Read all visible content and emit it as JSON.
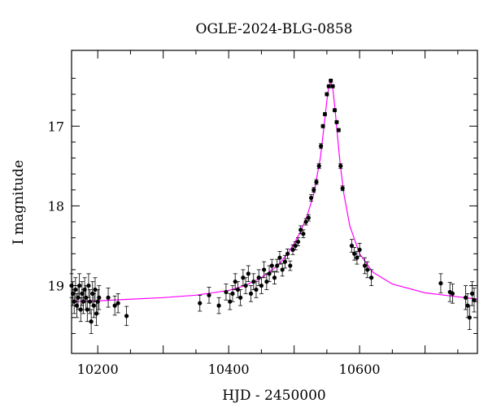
{
  "chart_data": {
    "type": "scatter",
    "title": "OGLE-2024-BLG-0858",
    "xlabel": "HJD - 2450000",
    "ylabel": "I magnitude",
    "xlim": [
      10160,
      10780
    ],
    "ylim": [
      19.85,
      16.05
    ],
    "y_inverted": true,
    "x_ticks": [
      10200,
      10400,
      10600
    ],
    "y_ticks": [
      17,
      18,
      19
    ],
    "grid": false,
    "legend": "none",
    "colors": {
      "points": "#000000",
      "model": "#ff00ff",
      "axes": "#000000"
    },
    "observations": {
      "x": [
        10160,
        10162,
        10164,
        10166,
        10168,
        10170,
        10172,
        10174,
        10176,
        10178,
        10180,
        10182,
        10184,
        10186,
        10188,
        10190,
        10192,
        10194,
        10196,
        10198,
        10200,
        10202,
        10216,
        10226,
        10231,
        10244,
        10356,
        10370,
        10385,
        10396,
        10402,
        10406,
        10410,
        10414,
        10418,
        10422,
        10426,
        10430,
        10434,
        10438,
        10442,
        10446,
        10450,
        10454,
        10458,
        10462,
        10466,
        10470,
        10474,
        10478,
        10482,
        10486,
        10490,
        10494,
        10498,
        10502,
        10506,
        10510,
        10514,
        10518,
        10522,
        10526,
        10530,
        10534,
        10538,
        10541,
        10544,
        10547,
        10550,
        10553,
        10556,
        10559,
        10562,
        10565,
        10568,
        10571,
        10574,
        10588,
        10592,
        10596,
        10600,
        10608,
        10612,
        10618,
        10724,
        10738,
        10742,
        10762,
        10765,
        10768,
        10772,
        10775
      ],
      "y": [
        19.0,
        19.1,
        19.2,
        19.05,
        19.25,
        19.15,
        19.0,
        19.3,
        19.1,
        19.2,
        19.05,
        19.15,
        19.3,
        19.0,
        19.2,
        19.45,
        19.1,
        19.25,
        19.05,
        19.35,
        19.2,
        19.15,
        19.15,
        19.25,
        19.22,
        19.38,
        19.22,
        19.12,
        19.25,
        19.08,
        19.2,
        19.1,
        18.95,
        19.05,
        19.15,
        18.9,
        19.0,
        18.85,
        19.1,
        18.95,
        19.05,
        18.9,
        19.0,
        18.8,
        18.95,
        18.85,
        18.75,
        18.9,
        18.75,
        18.65,
        18.8,
        18.7,
        18.6,
        18.75,
        18.55,
        18.5,
        18.45,
        18.3,
        18.35,
        18.2,
        18.15,
        17.9,
        17.8,
        17.7,
        17.5,
        17.25,
        17.0,
        16.85,
        16.6,
        16.5,
        16.43,
        16.5,
        16.8,
        16.95,
        17.05,
        17.5,
        17.78,
        18.5,
        18.6,
        18.65,
        18.55,
        18.75,
        18.8,
        18.9,
        18.97,
        19.08,
        19.1,
        19.15,
        19.25,
        19.4,
        19.1,
        19.18
      ],
      "errors": [
        0.15,
        0.15,
        0.15,
        0.15,
        0.15,
        0.15,
        0.15,
        0.15,
        0.15,
        0.15,
        0.15,
        0.15,
        0.15,
        0.15,
        0.15,
        0.15,
        0.15,
        0.15,
        0.15,
        0.15,
        0.15,
        0.15,
        0.12,
        0.12,
        0.12,
        0.12,
        0.1,
        0.1,
        0.1,
        0.1,
        0.1,
        0.1,
        0.1,
        0.1,
        0.1,
        0.1,
        0.1,
        0.1,
        0.1,
        0.1,
        0.1,
        0.1,
        0.1,
        0.1,
        0.1,
        0.1,
        0.08,
        0.08,
        0.08,
        0.08,
        0.08,
        0.08,
        0.06,
        0.06,
        0.06,
        0.05,
        0.05,
        0.05,
        0.05,
        0.04,
        0.04,
        0.04,
        0.03,
        0.03,
        0.03,
        0.03,
        0.02,
        0.02,
        0.02,
        0.02,
        0.02,
        0.02,
        0.02,
        0.02,
        0.02,
        0.03,
        0.03,
        0.08,
        0.08,
        0.08,
        0.08,
        0.1,
        0.1,
        0.1,
        0.12,
        0.12,
        0.12,
        0.15,
        0.15,
        0.15,
        0.15,
        0.15
      ]
    },
    "model": {
      "x": [
        10160,
        10200,
        10250,
        10300,
        10350,
        10400,
        10425,
        10450,
        10475,
        10490,
        10500,
        10510,
        10520,
        10530,
        10540,
        10545,
        10550,
        10553,
        10556,
        10559,
        10562,
        10566,
        10570,
        10576,
        10585,
        10600,
        10620,
        10650,
        10700,
        10750,
        10780
      ],
      "y": [
        19.2,
        19.19,
        19.17,
        19.15,
        19.12,
        19.06,
        19.0,
        18.9,
        18.75,
        18.6,
        18.47,
        18.32,
        18.12,
        17.85,
        17.4,
        17.05,
        16.68,
        16.5,
        16.45,
        16.52,
        16.75,
        17.1,
        17.45,
        17.85,
        18.25,
        18.6,
        18.83,
        18.98,
        19.09,
        19.14,
        19.17
      ]
    }
  }
}
